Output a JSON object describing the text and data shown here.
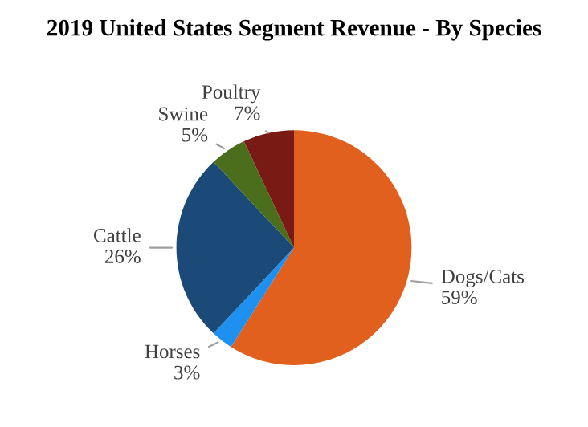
{
  "chart_data": {
    "type": "pie",
    "title": "2019 United States Segment Revenue - By Species",
    "categories": [
      "Dogs/Cats",
      "Horses",
      "Cattle",
      "Swine",
      "Poultry"
    ],
    "values": [
      59,
      3,
      26,
      5,
      7
    ],
    "value_labels": [
      "59%",
      "3%",
      "26%",
      "5%",
      "7%"
    ],
    "colors": [
      "#e2601e",
      "#1e90f0",
      "#1b4a78",
      "#4a6e1c",
      "#7a1a14"
    ],
    "legend": false
  }
}
